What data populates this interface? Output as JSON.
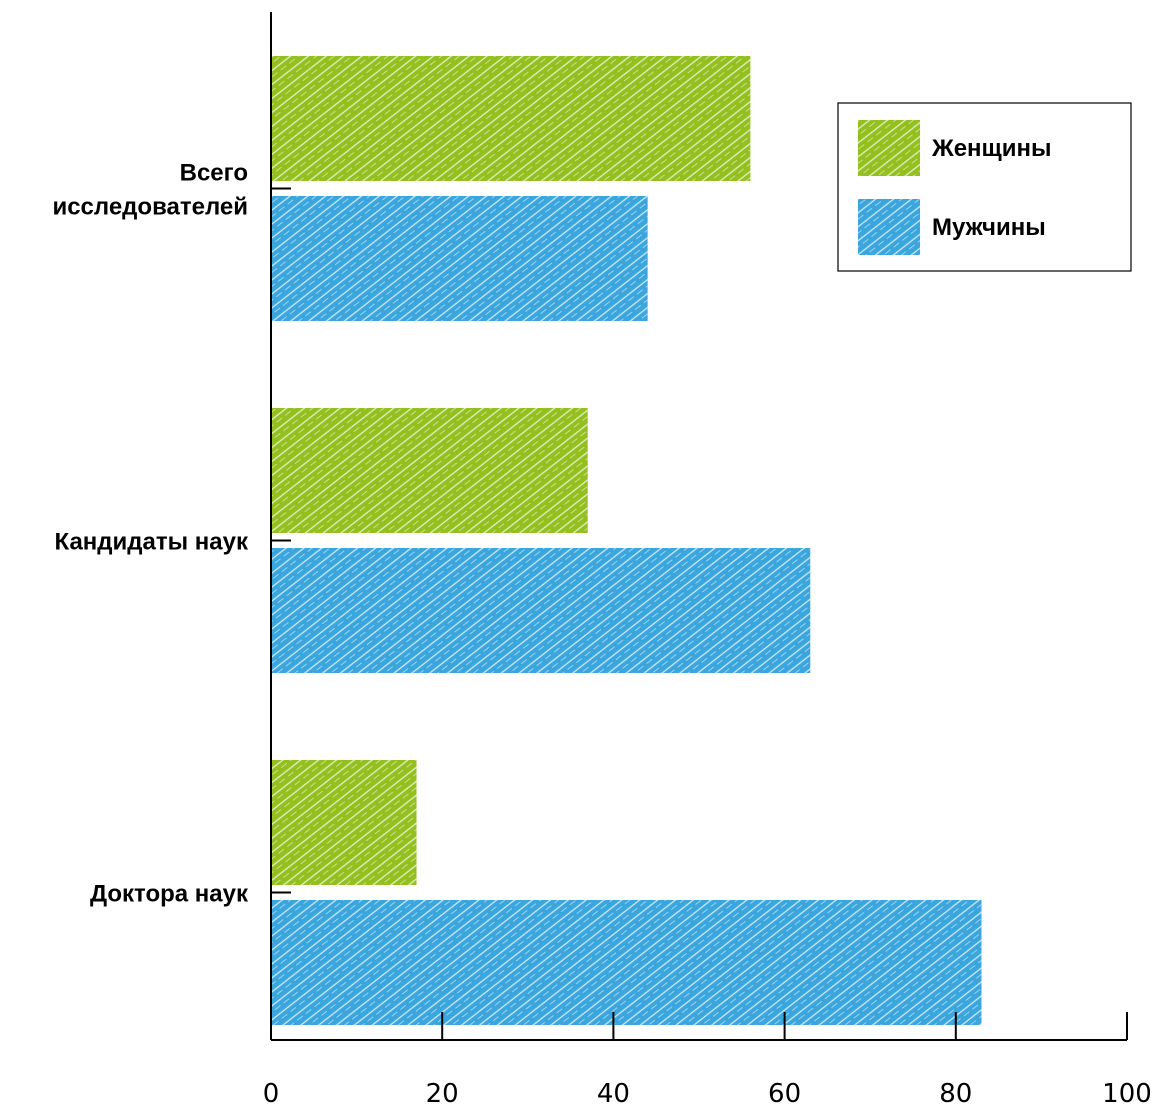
{
  "chart_data": {
    "type": "bar",
    "orientation": "horizontal",
    "categories": [
      [
        "Всего",
        "исследователей"
      ],
      [
        "Кандидаты наук"
      ],
      [
        "Доктора наук"
      ]
    ],
    "series": [
      {
        "name": "Женщины",
        "values": [
          56,
          37,
          17
        ],
        "color": "#93c01f"
      },
      {
        "name": "Мужчины",
        "values": [
          44,
          63,
          83
        ],
        "color": "#3aa6dd"
      }
    ],
    "x_ticks": [
      0,
      20,
      40,
      60,
      80,
      100
    ],
    "xlim": [
      0,
      100
    ],
    "title": "",
    "xlabel": "",
    "ylabel": "",
    "grid": false,
    "legend_position": "top-right",
    "fill_style": "hatched"
  }
}
